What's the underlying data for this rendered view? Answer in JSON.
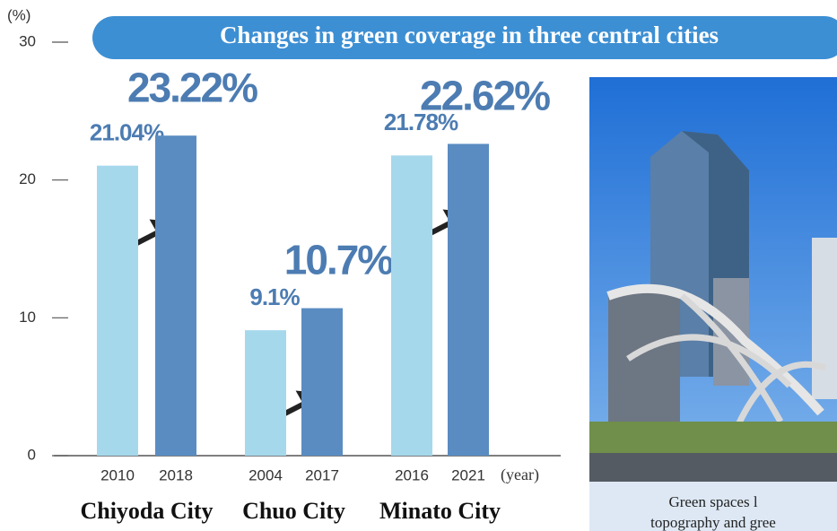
{
  "chart_data": {
    "type": "bar",
    "title": "Changes in green coverage in three central cities",
    "y_label": "(%)",
    "x_label": "(year)",
    "categories": [
      "2010",
      "2018",
      "2004",
      "2017",
      "2016",
      "2021"
    ],
    "values": [
      21.04,
      23.22,
      9.1,
      10.7,
      21.78,
      22.62
    ],
    "value_labels": [
      "21.04%",
      "23.22%",
      "9.1%",
      "10.7%",
      "21.78%",
      "22.62%"
    ],
    "colors": [
      "#a6d8ec",
      "#5a8cc2",
      "#a6d8ec",
      "#5a8cc2",
      "#a6d8ec",
      "#5a8cc2"
    ],
    "groups": [
      "Chiyoda City",
      "Chuo City",
      "Minato City"
    ],
    "ylim": [
      0,
      30
    ],
    "yticks": [
      0,
      10,
      20,
      30
    ]
  },
  "photo": {
    "caption": [
      "Green spaces l",
      "topography and gree"
    ]
  }
}
